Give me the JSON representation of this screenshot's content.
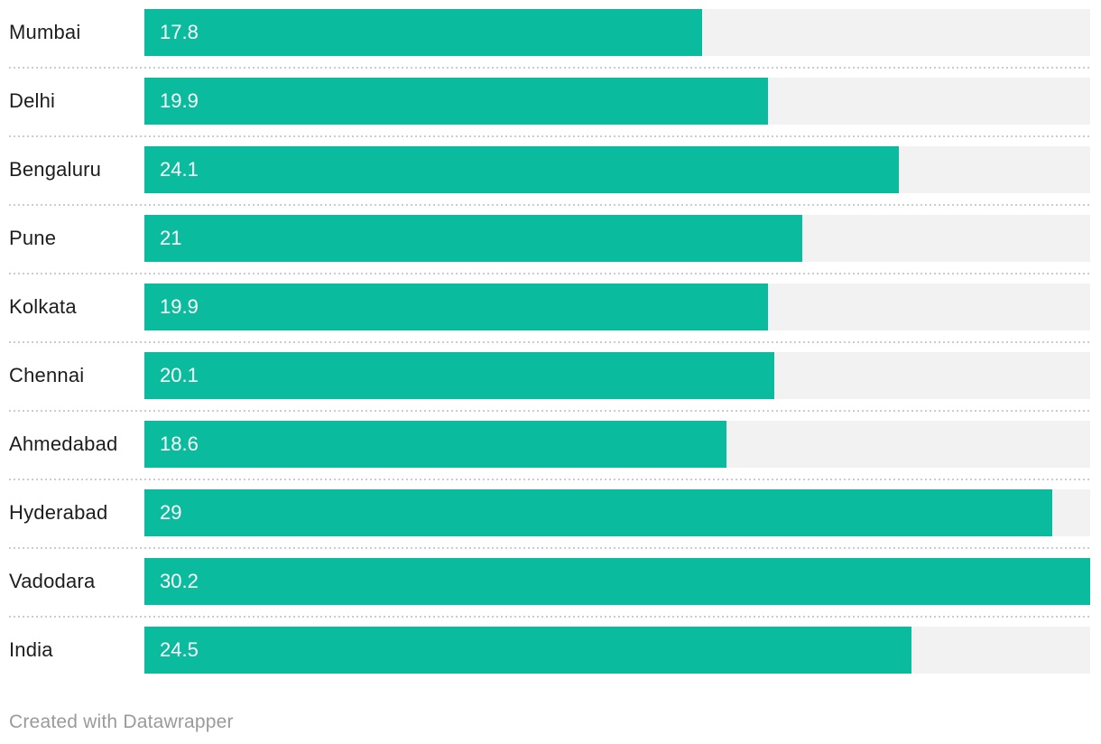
{
  "chart_data": {
    "type": "bar",
    "orientation": "horizontal",
    "title": "",
    "xlabel": "",
    "ylabel": "",
    "categories": [
      "Mumbai",
      "Delhi",
      "Bengaluru",
      "Pune",
      "Kolkata",
      "Chennai",
      "Ahmedabad",
      "Hyderabad",
      "Vadodara",
      "India"
    ],
    "values": [
      17.8,
      19.9,
      24.1,
      21,
      19.9,
      20.1,
      18.6,
      29,
      30.2,
      24.5
    ],
    "value_labels": [
      "17.8",
      "19.9",
      "24.1",
      "21",
      "19.9",
      "20.1",
      "18.6",
      "29",
      "30.2",
      "24.5"
    ],
    "xlim": [
      0,
      30.2
    ],
    "grid": false,
    "legend_position": "none",
    "bar_color": "#0abb9d",
    "track_color": "#f2f2f2",
    "divider_color": "#cccccc",
    "label_color": "#1d1d1d",
    "value_label_color": "#ffffff"
  },
  "footer": {
    "credit": "Created with Datawrapper"
  }
}
